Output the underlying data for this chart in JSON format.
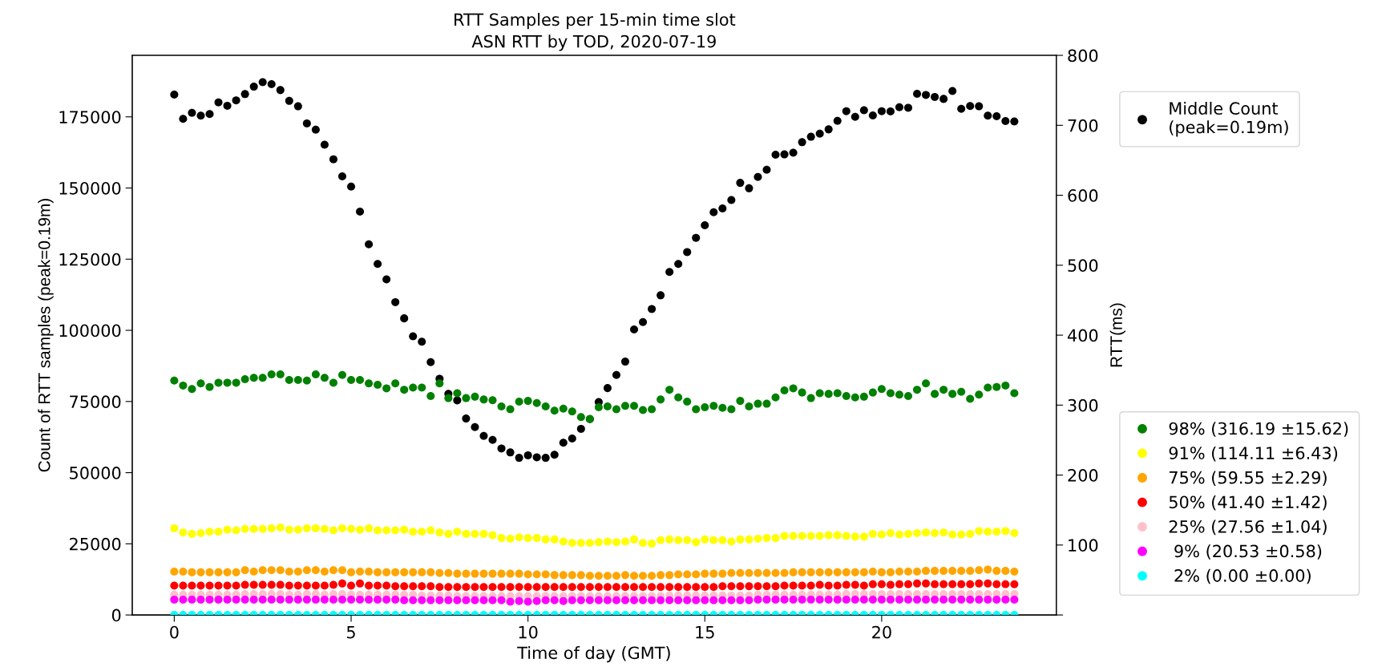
{
  "chart_data": {
    "type": "scatter",
    "title": "RTT Samples per 15-min time slot",
    "subtitle": "ASN RTT by TOD, 2020-07-19",
    "xlabel": "Time of day (GMT)",
    "ylabel": "Count of RTT samples (peak=0.19m)",
    "y2label": "RTT(ms)",
    "x": [
      0,
      0.25,
      0.5,
      0.75,
      1,
      1.25,
      1.5,
      1.75,
      2,
      2.25,
      2.5,
      2.75,
      3,
      3.25,
      3.5,
      3.75,
      4,
      4.25,
      4.5,
      4.75,
      5,
      5.25,
      5.5,
      5.75,
      6,
      6.25,
      6.5,
      6.75,
      7,
      7.25,
      7.5,
      7.75,
      8,
      8.25,
      8.5,
      8.75,
      9,
      9.25,
      9.5,
      9.75,
      10,
      10.25,
      10.5,
      10.75,
      11,
      11.25,
      11.5,
      11.75,
      12,
      12.25,
      12.5,
      12.75,
      13,
      13.25,
      13.5,
      13.75,
      14,
      14.25,
      14.5,
      14.75,
      15,
      15.25,
      15.5,
      15.75,
      16,
      16.25,
      16.5,
      16.75,
      17,
      17.25,
      17.5,
      17.75,
      18,
      18.25,
      18.5,
      18.75,
      19,
      19.25,
      19.5,
      19.75,
      20,
      20.25,
      20.5,
      20.75,
      21,
      21.25,
      21.5,
      21.75,
      22,
      22.25,
      22.5,
      22.75,
      23,
      23.25,
      23.5,
      23.75
    ],
    "xlim": [
      -1.1875,
      24.9375
    ],
    "xticks": [
      0,
      5,
      10,
      15,
      20
    ],
    "ylim": [
      0,
      196600
    ],
    "yticks": [
      0,
      25000,
      50000,
      75000,
      100000,
      125000,
      150000,
      175000
    ],
    "y2lim": [
      0,
      800
    ],
    "y2ticks": [
      {
        "value": 0,
        "label": null
      },
      100,
      200,
      300,
      400,
      500,
      600,
      700,
      800
    ],
    "marker": "circle",
    "legend": "right",
    "series": [
      {
        "name": "Middle Count\n(peak=0.19m)",
        "color": "#000000",
        "axis": "y",
        "values": [
          182800,
          174300,
          176400,
          175400,
          176000,
          180100,
          178900,
          180800,
          183000,
          185600,
          187200,
          186500,
          184400,
          180600,
          178700,
          172700,
          170500,
          165200,
          160100,
          154100,
          150500,
          141700,
          130200,
          123300,
          117900,
          109900,
          104200,
          97900,
          96000,
          88800,
          83000,
          77700,
          75400,
          69000,
          66000,
          62900,
          61500,
          58500,
          57100,
          55200,
          56100,
          55400,
          55200,
          56300,
          60500,
          62000,
          65400,
          68800,
          74800,
          79700,
          84300,
          89000,
          100300,
          102900,
          107500,
          112300,
          120500,
          123300,
          127500,
          132500,
          136900,
          141500,
          142800,
          145800,
          151800,
          149900,
          153900,
          156400,
          161700,
          161800,
          162400,
          166100,
          168000,
          169100,
          170600,
          173600,
          177000,
          175000,
          177300,
          175500,
          177000,
          176900,
          178400,
          178200,
          183100,
          182700,
          182000,
          181300,
          184100,
          177800,
          178800,
          178700,
          175400,
          175200,
          173500,
          173400
        ]
      },
      {
        "name": "98% (316.19 ±15.62)",
        "color": "#008000",
        "axis": "y2",
        "values": [
          335,
          328,
          323,
          331,
          326,
          332,
          332,
          332,
          337,
          339,
          339,
          344,
          344,
          336,
          336,
          335,
          344,
          339,
          332,
          343,
          336,
          336,
          331,
          329,
          324,
          331,
          322,
          325,
          325,
          313,
          331,
          310,
          317,
          310,
          312,
          308,
          307,
          298,
          294,
          305,
          306,
          303,
          298,
          292,
          295,
          291,
          283,
          280,
          297,
          298,
          294,
          299,
          299,
          293,
          294,
          308,
          322,
          311,
          305,
          294,
          297,
          299,
          296,
          294,
          306,
          298,
          302,
          302,
          311,
          321,
          324,
          318,
          310,
          317,
          316,
          317,
          313,
          311,
          312,
          318,
          323,
          317,
          315,
          313,
          322,
          331,
          316,
          322,
          316,
          319,
          309,
          315,
          325,
          326,
          328,
          317
        ]
      },
      {
        "name": "91% (114.11 ±6.43)",
        "color": "#ffff00",
        "axis": "y2",
        "values": [
          124,
          118,
          116,
          117,
          119,
          119,
          122,
          121,
          123,
          123,
          123,
          124,
          125,
          122,
          122,
          124,
          124,
          123,
          121,
          124,
          123,
          122,
          124,
          121,
          121,
          121,
          122,
          119,
          119,
          121,
          118,
          116,
          119,
          116,
          116,
          116,
          114,
          110,
          109,
          111,
          110,
          110,
          108,
          108,
          105,
          103,
          103,
          103,
          104,
          105,
          104,
          105,
          108,
          103,
          102,
          107,
          108,
          107,
          107,
          104,
          108,
          107,
          107,
          105,
          108,
          108,
          109,
          110,
          110,
          113,
          113,
          113,
          113,
          113,
          114,
          114,
          113,
          112,
          112,
          116,
          115,
          117,
          115,
          116,
          117,
          118,
          117,
          118,
          115,
          115,
          116,
          120,
          119,
          119,
          120,
          117
        ]
      },
      {
        "name": "75% (59.55 ±2.29)",
        "color": "#ffa500",
        "axis": "y2",
        "values": [
          62,
          62,
          61,
          61,
          61,
          61,
          61,
          61,
          64,
          62,
          64,
          64,
          64,
          62,
          62,
          64,
          64,
          62,
          64,
          64,
          61,
          62,
          62,
          61,
          61,
          61,
          61,
          61,
          61,
          61,
          60,
          60,
          59,
          59,
          59,
          59,
          59,
          59,
          59,
          59,
          58,
          58,
          58,
          57,
          57,
          57,
          57,
          56,
          56,
          56,
          56,
          57,
          56,
          56,
          56,
          57,
          57,
          58,
          58,
          58,
          59,
          59,
          59,
          60,
          60,
          60,
          60,
          60,
          60,
          60,
          61,
          61,
          61,
          61,
          61,
          61,
          61,
          61,
          61,
          62,
          61,
          61,
          62,
          62,
          62,
          63,
          63,
          63,
          63,
          63,
          63,
          64,
          65,
          63,
          63,
          62
        ]
      },
      {
        "name": "50% (41.40 ±1.42)",
        "color": "#ff0000",
        "axis": "y2",
        "values": [
          42,
          42,
          42,
          42,
          42,
          42,
          42,
          42,
          43,
          43,
          43,
          43,
          43,
          42,
          42,
          42,
          42,
          42,
          43,
          45,
          42,
          45,
          42,
          42,
          42,
          41,
          41,
          41,
          41,
          41,
          40,
          40,
          40,
          40,
          40,
          40,
          40,
          40,
          40,
          40,
          40,
          40,
          40,
          40,
          40,
          40,
          40,
          40,
          40,
          40,
          40,
          40,
          40,
          40,
          40,
          40,
          40,
          40,
          40,
          40,
          40,
          40,
          41,
          41,
          41,
          41,
          41,
          41,
          41,
          42,
          42,
          42,
          42,
          43,
          42,
          42,
          43,
          43,
          42,
          44,
          44,
          43,
          44,
          44,
          45,
          45,
          44,
          44,
          44,
          44,
          44,
          45,
          45,
          44,
          44,
          44
        ]
      },
      {
        "name": "25% (27.56 ±1.04)",
        "color": "#ffc0cb",
        "axis": "y2",
        "values": [
          29,
          29,
          29,
          29,
          29,
          29,
          29,
          29,
          30,
          30,
          30,
          30,
          30,
          29,
          29,
          30,
          30,
          29,
          30,
          30,
          29,
          29,
          29,
          29,
          29,
          29,
          29,
          29,
          28,
          28,
          28,
          28,
          27,
          27,
          27,
          27,
          27,
          27,
          27,
          27,
          27,
          27,
          27,
          27,
          27,
          27,
          27,
          27,
          27,
          27,
          27,
          27,
          27,
          27,
          27,
          27,
          28,
          28,
          28,
          28,
          28,
          28,
          28,
          28,
          28,
          28,
          29,
          29,
          29,
          29,
          29,
          29,
          29,
          29,
          29,
          29,
          30,
          30,
          30,
          30,
          30,
          30,
          30,
          30,
          30,
          30,
          30,
          30,
          30,
          30,
          30,
          30,
          30,
          30,
          30,
          30
        ]
      },
      {
        "name": " 9% (20.53 ±0.58)",
        "color": "#ff00ff",
        "axis": "y2",
        "values": [
          22,
          22,
          22,
          22,
          22,
          22,
          22,
          22,
          22,
          22,
          22,
          22,
          22,
          22,
          22,
          22,
          22,
          22,
          22,
          22,
          22,
          22,
          22,
          22,
          22,
          22,
          21,
          21,
          21,
          21,
          21,
          21,
          21,
          21,
          21,
          21,
          21,
          21,
          19,
          20,
          19,
          20,
          21,
          21,
          20,
          21,
          21,
          21,
          21,
          21,
          21,
          21,
          21,
          21,
          21,
          21,
          21,
          21,
          21,
          21,
          21,
          21,
          21,
          21,
          21,
          21,
          22,
          22,
          22,
          22,
          22,
          22,
          22,
          22,
          22,
          22,
          22,
          22,
          22,
          22,
          22,
          22,
          22,
          22,
          22,
          22,
          22,
          22,
          22,
          22,
          22,
          22,
          22,
          22,
          22,
          22
        ]
      },
      {
        "name": " 2% (0.00 ±0.00)",
        "color": "#00ffff",
        "axis": "y2",
        "values": [
          0,
          0,
          0,
          0,
          0,
          0,
          0,
          0,
          0,
          0,
          0,
          0,
          0,
          0,
          0,
          0,
          0,
          0,
          0,
          0,
          0,
          0,
          0,
          0,
          0,
          0,
          0,
          0,
          0,
          0,
          0,
          0,
          0,
          0,
          0,
          0,
          0,
          0,
          0,
          0,
          0,
          0,
          0,
          0,
          0,
          0,
          0,
          0,
          0,
          0,
          0,
          0,
          0,
          0,
          0,
          0,
          0,
          0,
          0,
          0,
          0,
          0,
          0,
          0,
          0,
          0,
          0,
          0,
          0,
          0,
          0,
          0,
          0,
          0,
          0,
          0,
          0,
          0,
          0,
          0,
          0,
          0,
          0,
          0,
          0,
          0,
          0,
          0,
          0,
          0,
          0,
          0,
          0,
          0,
          0,
          0
        ]
      }
    ]
  }
}
